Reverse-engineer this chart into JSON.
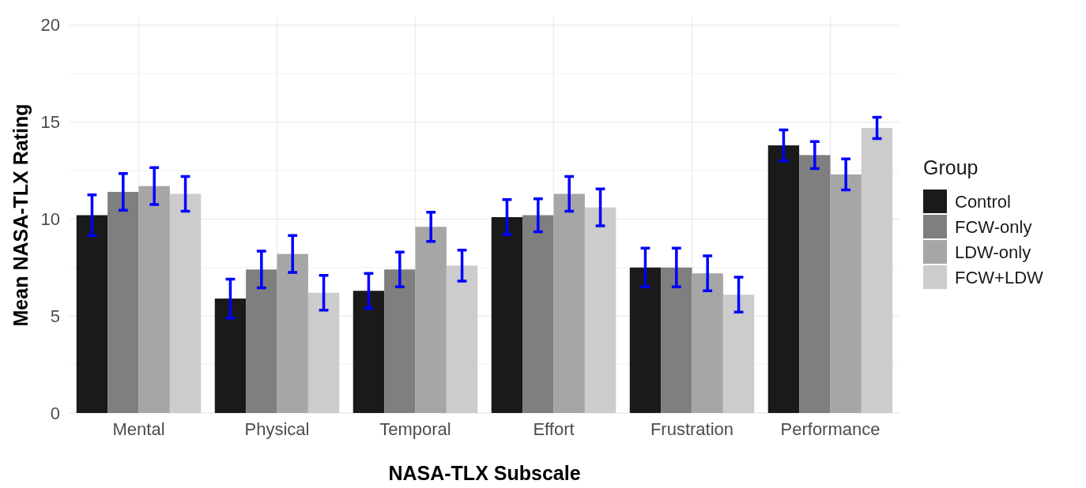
{
  "chart_data": {
    "type": "bar",
    "xlabel": "NASA-TLX Subscale",
    "ylabel": "Mean NASA-TLX Rating",
    "legend_title": "Group",
    "categories": [
      "Mental",
      "Physical",
      "Temporal",
      "Effort",
      "Frustration",
      "Performance"
    ],
    "series": [
      {
        "name": "Control",
        "color": "#1a1a1a",
        "values": [
          10.2,
          5.9,
          6.3,
          10.1,
          7.5,
          13.8
        ],
        "errors": [
          1.05,
          1.0,
          0.9,
          0.9,
          1.0,
          0.8
        ]
      },
      {
        "name": "FCW-only",
        "color": "#7f7f7f",
        "values": [
          11.4,
          7.4,
          7.4,
          10.2,
          7.5,
          13.3
        ],
        "errors": [
          0.95,
          0.95,
          0.9,
          0.85,
          1.0,
          0.7
        ]
      },
      {
        "name": "LDW-only",
        "color": "#a6a6a6",
        "values": [
          11.7,
          8.2,
          9.6,
          11.3,
          7.2,
          12.3
        ],
        "errors": [
          0.95,
          0.95,
          0.75,
          0.9,
          0.9,
          0.8
        ]
      },
      {
        "name": "FCW+LDW",
        "color": "#cccccc",
        "values": [
          11.3,
          6.2,
          7.6,
          10.6,
          6.1,
          14.7
        ],
        "errors": [
          0.9,
          0.9,
          0.8,
          0.95,
          0.9,
          0.55
        ]
      }
    ],
    "ylim": [
      0,
      20.4
    ],
    "yticks": [
      0,
      {
        "value": 2.5,
        "label": null
      },
      5,
      {
        "value": 7.5,
        "label": null
      },
      10,
      {
        "value": 12.5,
        "label": null
      },
      15,
      {
        "value": 17.5,
        "label": null
      },
      20
    ],
    "grid": true,
    "legend": "right"
  }
}
